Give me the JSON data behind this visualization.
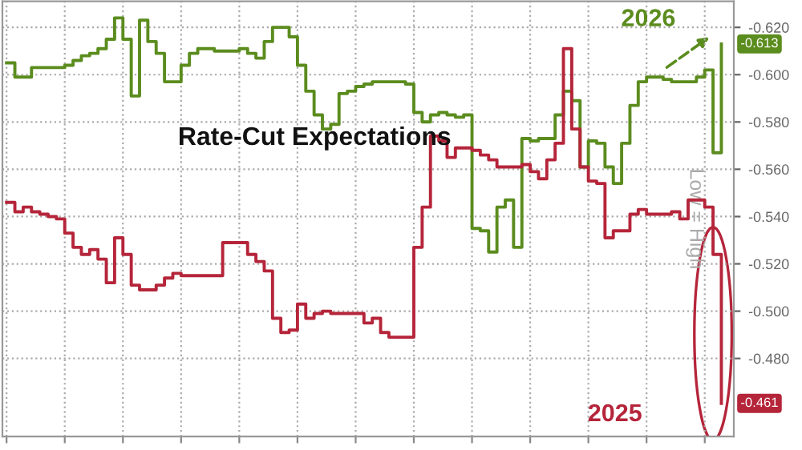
{
  "chart_data": {
    "type": "step",
    "title": "Rate-Cut Expectations",
    "ylabel": "Low = High",
    "categories": [
      null,
      null,
      null,
      null,
      null,
      null,
      null,
      null,
      null,
      null,
      null,
      null,
      null,
      null,
      null,
      null,
      null,
      null,
      null,
      null,
      null,
      null,
      null,
      null,
      null,
      null,
      null,
      null,
      null,
      null,
      null,
      null,
      null,
      null,
      null,
      null,
      null,
      null,
      null,
      null,
      null,
      null,
      null,
      null,
      null,
      null,
      null,
      null,
      null,
      null,
      null,
      null,
      null,
      null,
      null,
      null,
      null,
      null,
      null,
      null,
      null,
      null,
      null,
      null,
      null,
      null,
      null,
      null,
      null,
      null,
      null,
      null,
      null,
      null,
      null,
      null,
      null,
      null,
      null,
      null,
      null,
      null,
      null,
      null,
      null,
      null,
      null
    ],
    "series": [
      {
        "name": "2026",
        "color": "#5b8c1e",
        "values": [
          -0.605,
          -0.599,
          -0.599,
          -0.603,
          -0.603,
          -0.603,
          -0.603,
          -0.604,
          -0.606,
          -0.608,
          -0.609,
          -0.611,
          -0.615,
          -0.624,
          -0.615,
          -0.591,
          -0.623,
          -0.614,
          -0.609,
          -0.597,
          -0.597,
          -0.604,
          -0.609,
          -0.611,
          -0.611,
          -0.61,
          -0.61,
          -0.61,
          -0.611,
          -0.609,
          -0.607,
          -0.614,
          -0.62,
          -0.62,
          -0.616,
          -0.604,
          -0.593,
          -0.583,
          -0.577,
          -0.579,
          -0.592,
          -0.593,
          -0.595,
          -0.596,
          -0.597,
          -0.597,
          -0.597,
          -0.597,
          -0.596,
          -0.584,
          -0.58,
          -0.583,
          -0.584,
          -0.583,
          -0.582,
          -0.583,
          -0.535,
          -0.534,
          -0.525,
          -0.544,
          -0.547,
          -0.527,
          -0.573,
          -0.572,
          -0.573,
          -0.573,
          -0.583,
          -0.593,
          -0.589,
          -0.561,
          -0.572,
          -0.571,
          -0.561,
          -0.554,
          -0.571,
          -0.587,
          -0.597,
          -0.599,
          -0.599,
          -0.598,
          -0.597,
          -0.597,
          -0.597,
          -0.599,
          -0.602,
          -0.567,
          -0.613
        ],
        "value_labels": [
          null,
          null,
          null,
          null,
          null,
          null,
          null,
          null,
          null,
          null,
          null,
          null,
          null,
          null,
          null,
          null,
          null,
          null,
          null,
          null,
          null,
          null,
          null,
          null,
          null,
          null,
          null,
          null,
          null,
          null,
          null,
          null,
          null,
          null,
          null,
          null,
          null,
          null,
          null,
          null,
          null,
          null,
          null,
          null,
          null,
          null,
          null,
          null,
          null,
          null,
          null,
          null,
          null,
          null,
          null,
          null,
          null,
          null,
          null,
          null,
          null,
          null,
          null,
          null,
          null,
          null,
          null,
          null,
          null,
          null,
          null,
          null,
          null,
          null,
          null,
          null,
          null,
          null,
          null,
          null,
          null,
          null,
          null,
          null,
          null,
          null,
          "-0.613"
        ]
      },
      {
        "name": "2025",
        "color": "#b5253a",
        "values": [
          -0.546,
          -0.542,
          -0.544,
          -0.542,
          -0.541,
          -0.54,
          -0.539,
          -0.533,
          -0.527,
          -0.524,
          -0.526,
          -0.522,
          -0.512,
          -0.531,
          -0.524,
          -0.511,
          -0.509,
          -0.509,
          -0.511,
          -0.514,
          -0.516,
          -0.515,
          -0.515,
          -0.515,
          -0.515,
          -0.515,
          -0.529,
          -0.529,
          -0.529,
          -0.524,
          -0.521,
          -0.517,
          -0.497,
          -0.491,
          -0.492,
          -0.503,
          -0.497,
          -0.499,
          -0.5,
          -0.499,
          -0.499,
          -0.499,
          -0.499,
          -0.495,
          -0.497,
          -0.491,
          -0.489,
          -0.489,
          -0.489,
          -0.527,
          -0.544,
          -0.574,
          -0.572,
          -0.565,
          -0.569,
          -0.569,
          -0.568,
          -0.566,
          -0.564,
          -0.561,
          -0.561,
          -0.561,
          -0.562,
          -0.559,
          -0.556,
          -0.564,
          -0.571,
          -0.611,
          -0.577,
          -0.561,
          -0.555,
          -0.554,
          -0.531,
          -0.534,
          -0.534,
          -0.541,
          -0.543,
          -0.541,
          -0.541,
          -0.541,
          -0.542,
          -0.539,
          -0.547,
          -0.547,
          -0.544,
          -0.524,
          -0.461
        ],
        "value_labels": [
          null,
          null,
          null,
          null,
          null,
          null,
          null,
          null,
          null,
          null,
          null,
          null,
          null,
          null,
          null,
          null,
          null,
          null,
          null,
          null,
          null,
          null,
          null,
          null,
          null,
          null,
          null,
          null,
          null,
          null,
          null,
          null,
          null,
          null,
          null,
          null,
          null,
          null,
          null,
          null,
          null,
          null,
          null,
          null,
          null,
          null,
          null,
          null,
          null,
          null,
          null,
          null,
          null,
          null,
          null,
          null,
          null,
          null,
          null,
          null,
          null,
          null,
          null,
          null,
          null,
          null,
          null,
          null,
          null,
          null,
          null,
          null,
          null,
          null,
          null,
          null,
          null,
          null,
          null,
          null,
          null,
          null,
          null,
          null,
          null,
          null,
          "-0.461"
        ]
      }
    ],
    "ylim": [
      -0.447,
      -0.631
    ],
    "yticks": [
      {
        "value": -0.62,
        "label": "-0.620"
      },
      {
        "value": -0.6,
        "label": "-0.600"
      },
      {
        "value": -0.58,
        "label": "-0.580"
      },
      {
        "value": -0.56,
        "label": "-0.560"
      },
      {
        "value": -0.54,
        "label": "-0.540"
      },
      {
        "value": -0.52,
        "label": "-0.520"
      },
      {
        "value": -0.5,
        "label": "-0.500"
      },
      {
        "value": -0.48,
        "label": "-0.480"
      }
    ],
    "grid": true,
    "tick_labels": "y",
    "line_style": "solid",
    "marker": "none"
  }
}
